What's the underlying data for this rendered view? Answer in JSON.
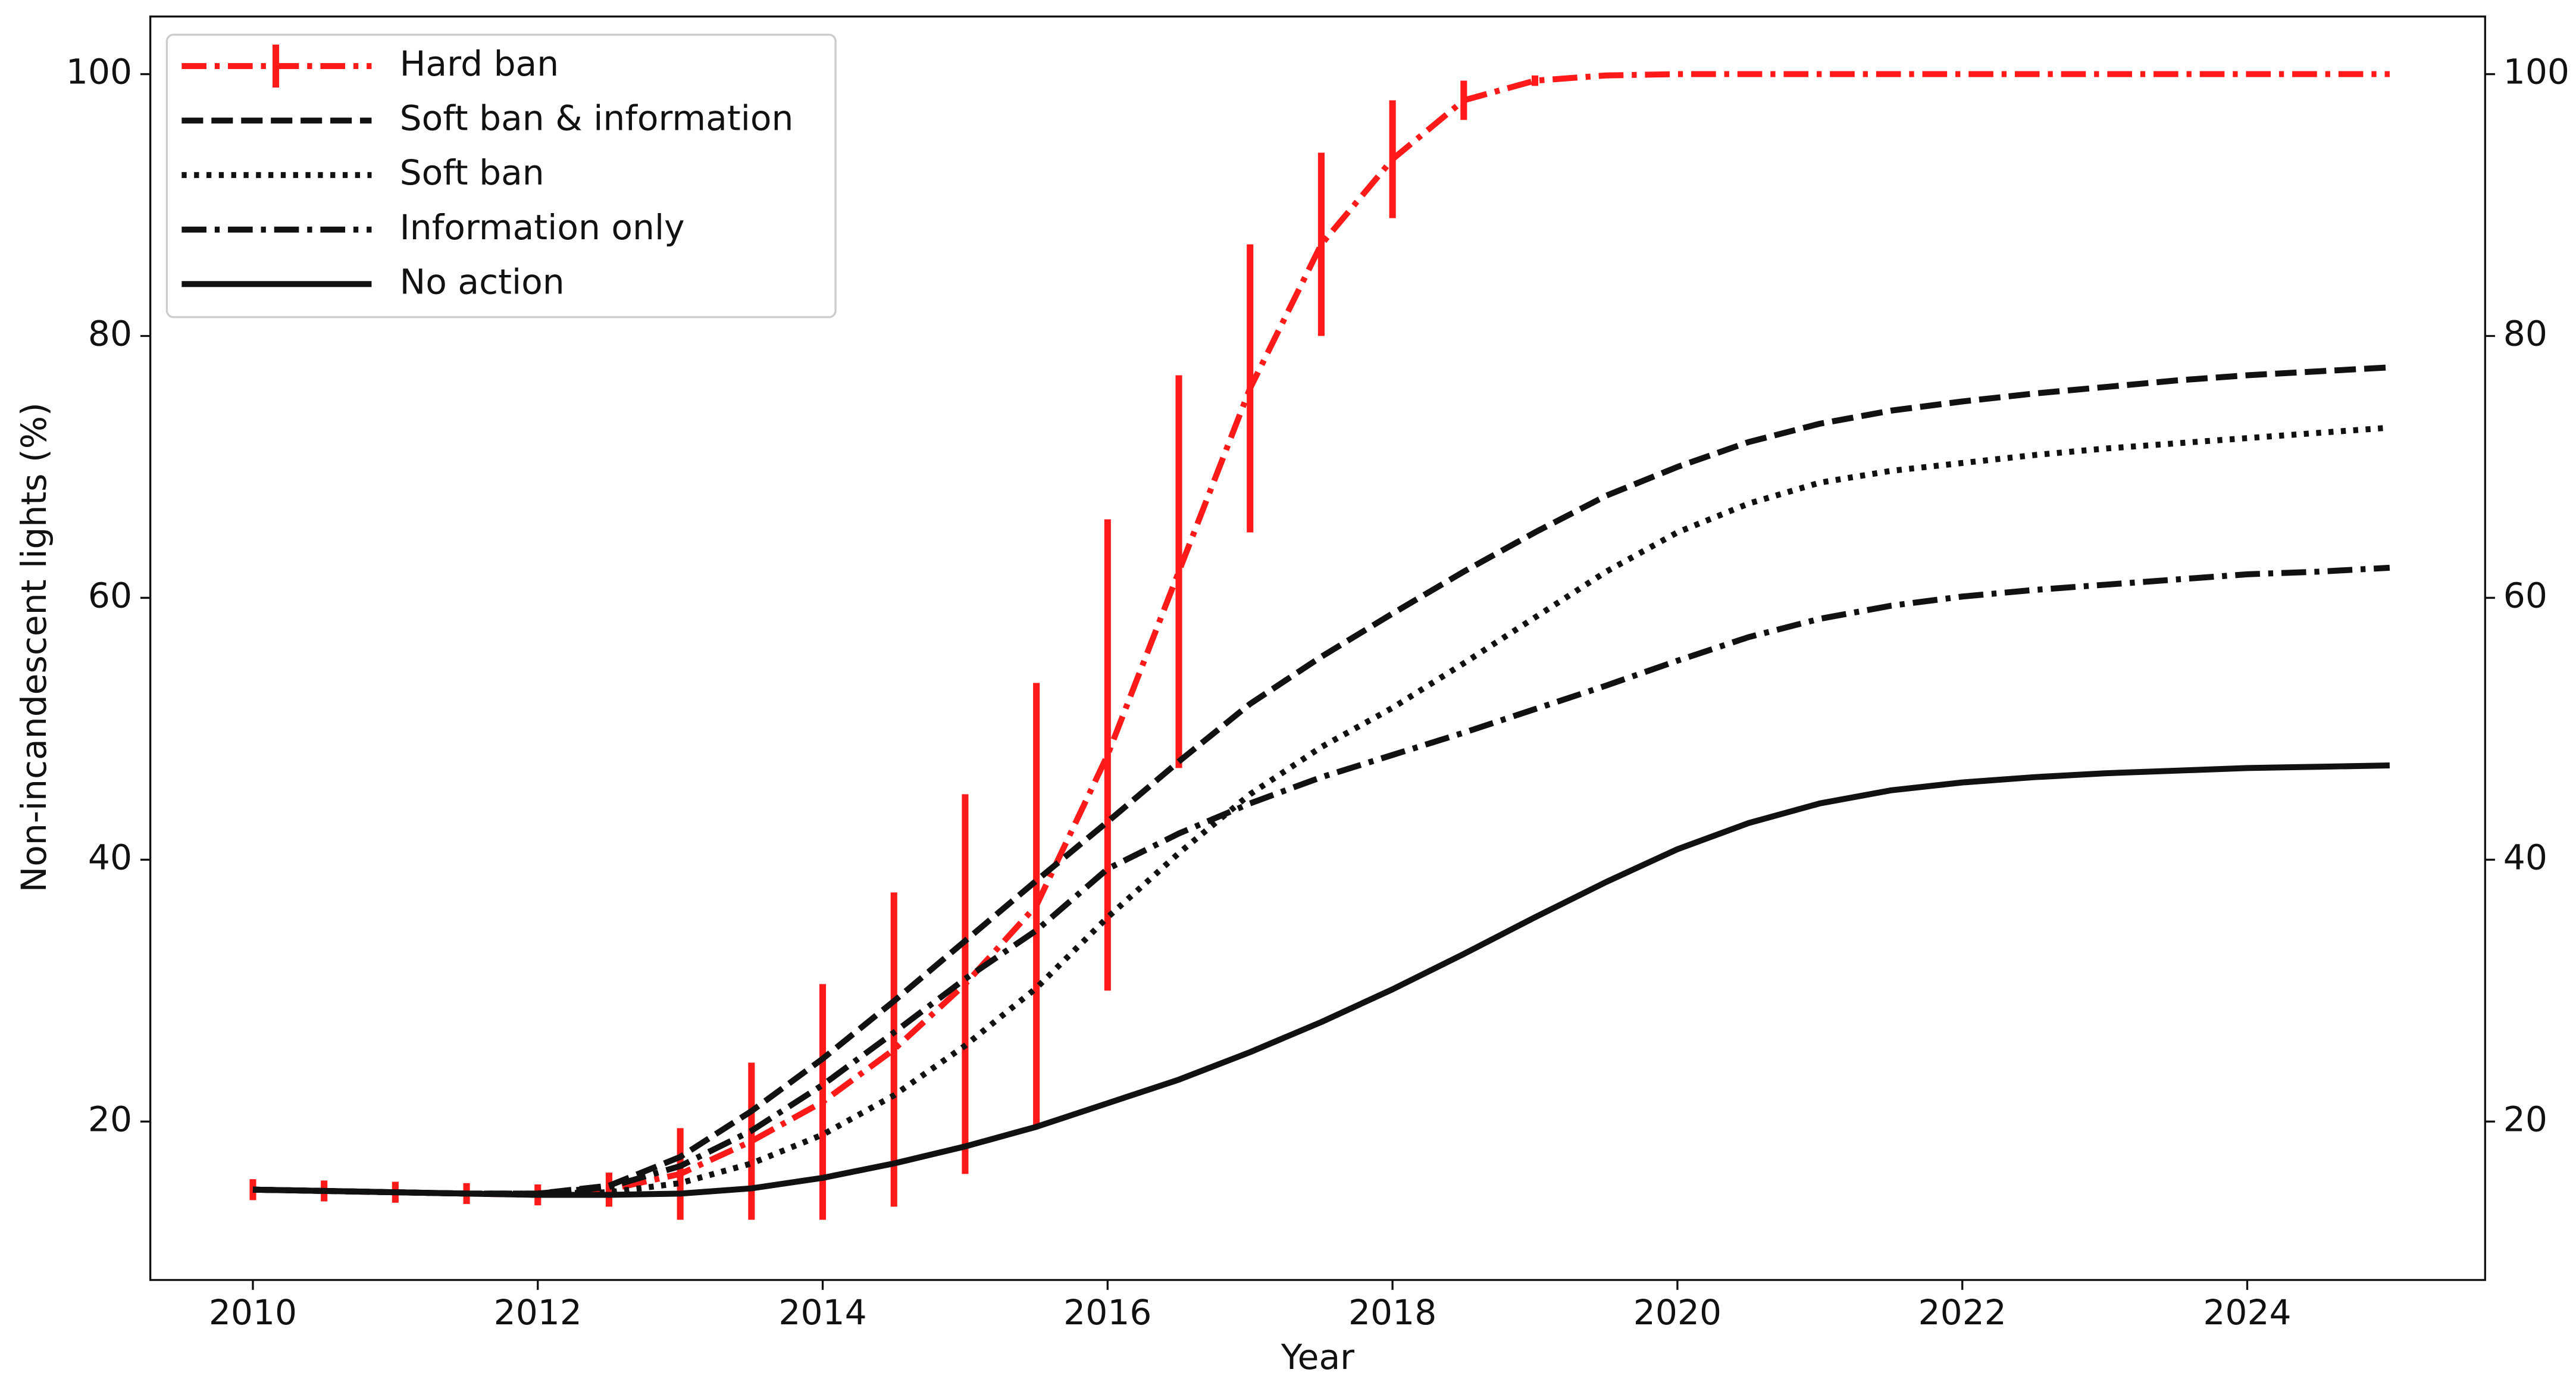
{
  "chart_data": {
    "type": "line",
    "xlabel": "Year",
    "ylabel": "Non-incandescent lights (%)",
    "x": [
      2010,
      2010.5,
      2011,
      2011.5,
      2012,
      2012.5,
      2013,
      2013.5,
      2014,
      2014.5,
      2015,
      2015.5,
      2016,
      2016.5,
      2017,
      2017.5,
      2018,
      2018.5,
      2019,
      2019.5,
      2020,
      2020.5,
      2021,
      2021.5,
      2022,
      2022.5,
      2023,
      2023.5,
      2024,
      2024.5,
      2025
    ],
    "series": [
      {
        "name": "Hard ban",
        "color": "#ff1a1a",
        "style": "dashdot",
        "error_bars": true,
        "values": [
          14.8,
          14.7,
          14.6,
          14.5,
          14.4,
          14.8,
          16.0,
          18.5,
          21.5,
          25.5,
          30.5,
          36.5,
          48.0,
          62.0,
          76.0,
          87.0,
          93.5,
          98.0,
          99.5,
          99.9,
          100,
          100,
          100,
          100,
          100,
          100,
          100,
          100,
          100,
          100,
          100
        ],
        "errors": [
          0.8,
          0.8,
          0.8,
          0.8,
          0.8,
          1.3,
          3.5,
          6.0,
          9.0,
          12.0,
          14.5,
          17.0,
          18.0,
          15.0,
          11.0,
          7.0,
          4.5,
          1.5,
          0.4,
          0.1,
          0,
          0,
          0,
          0,
          0,
          0,
          0,
          0,
          0,
          0,
          0
        ]
      },
      {
        "name": "Soft ban & information",
        "color": "#111111",
        "style": "dashed",
        "values": [
          14.8,
          14.7,
          14.6,
          14.5,
          14.5,
          15.1,
          17.3,
          20.8,
          24.8,
          29.2,
          33.8,
          38.4,
          42.9,
          47.5,
          51.9,
          55.5,
          58.8,
          62.0,
          65.0,
          67.8,
          70.0,
          71.9,
          73.3,
          74.3,
          75.0,
          75.6,
          76.1,
          76.6,
          77.0,
          77.3,
          77.6
        ]
      },
      {
        "name": "Soft ban",
        "color": "#111111",
        "style": "dotted",
        "values": [
          14.8,
          14.7,
          14.6,
          14.5,
          14.5,
          14.6,
          15.3,
          16.8,
          19.0,
          22.0,
          25.8,
          30.2,
          35.6,
          40.5,
          45.0,
          48.6,
          51.6,
          55.0,
          58.5,
          62.0,
          65.0,
          67.2,
          68.8,
          69.7,
          70.3,
          70.9,
          71.4,
          71.8,
          72.2,
          72.6,
          73.0
        ]
      },
      {
        "name": "Information only",
        "color": "#111111",
        "style": "dashdot",
        "values": [
          14.8,
          14.7,
          14.6,
          14.5,
          14.5,
          15.0,
          16.6,
          19.3,
          22.8,
          26.8,
          30.9,
          34.6,
          39.3,
          42.0,
          44.3,
          46.3,
          48.0,
          49.7,
          51.5,
          53.3,
          55.2,
          57.0,
          58.4,
          59.4,
          60.1,
          60.6,
          61.0,
          61.4,
          61.8,
          62.0,
          62.3
        ]
      },
      {
        "name": "No action",
        "color": "#111111",
        "style": "solid",
        "values": [
          14.8,
          14.7,
          14.6,
          14.5,
          14.4,
          14.4,
          14.5,
          14.9,
          15.7,
          16.8,
          18.1,
          19.6,
          21.4,
          23.2,
          25.3,
          27.6,
          30.1,
          32.8,
          35.6,
          38.3,
          40.8,
          42.8,
          44.3,
          45.3,
          45.9,
          46.3,
          46.6,
          46.8,
          47.0,
          47.1,
          47.2
        ]
      }
    ],
    "xlim": [
      2009.28,
      2025.67
    ],
    "xticks": [
      2010,
      2012,
      2014,
      2016,
      2018,
      2020,
      2022,
      2024
    ],
    "ylim": [
      7.9,
      104.4
    ],
    "yticks": [
      20,
      40,
      60,
      80,
      100
    ],
    "y2lim": [
      7.9,
      104.4
    ],
    "y2ticks": [
      20,
      40,
      60,
      80,
      100
    ],
    "grid": false,
    "legend": "upper left"
  }
}
